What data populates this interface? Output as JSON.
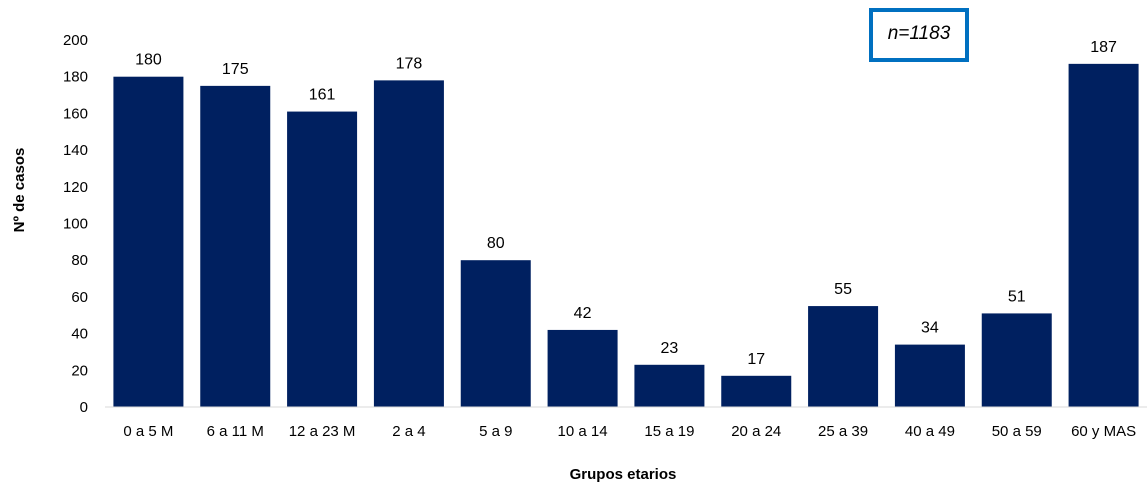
{
  "chart_data": {
    "type": "bar",
    "categories": [
      "0 a 5 M",
      "6 a 11 M",
      "12 a 23 M",
      "2 a 4",
      "5 a 9",
      "10 a 14",
      "15 a 19",
      "20 a 24",
      "25 a 39",
      "40 a 49",
      "50 a 59",
      "60 y MAS"
    ],
    "values": [
      180,
      175,
      161,
      178,
      80,
      42,
      23,
      17,
      55,
      34,
      51,
      187
    ],
    "data_labels": [
      "180",
      "175",
      "161",
      "178",
      "80",
      "42",
      "23",
      "17",
      "55",
      "34",
      "51",
      "187"
    ],
    "xlabel": "Grupos etarios",
    "ylabel": "Nº de casos",
    "ylim": [
      0,
      200
    ],
    "yticks": [
      0,
      20,
      40,
      60,
      80,
      100,
      120,
      140,
      160,
      180,
      200
    ],
    "ytick_labels": [
      "0",
      "20",
      "40",
      "60",
      "80",
      "100",
      "120",
      "140",
      "160",
      "180",
      "200"
    ],
    "grid": false,
    "annotation": "n=1183",
    "colors": {
      "bar": "#002060",
      "annotation_border": "#0070C0",
      "axis": "#d9d9d9"
    }
  }
}
